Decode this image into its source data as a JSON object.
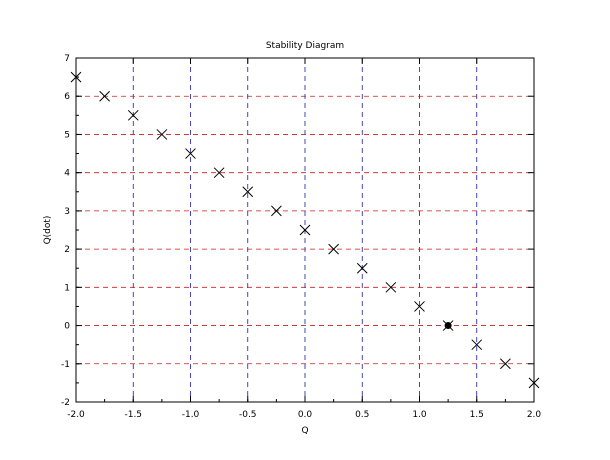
{
  "chart_data": {
    "type": "scatter",
    "title": "Stability Diagram",
    "xlabel": "Q",
    "ylabel": "Q(dot)",
    "xlim": [
      -2.0,
      2.0
    ],
    "ylim": [
      -2,
      7
    ],
    "grid": true,
    "grid_colors": {
      "x": "#1a1aa8",
      "y": "#c81e1e"
    },
    "x_ticks": [
      "-2.0",
      "-1.5",
      "-1.0",
      "-0.5",
      "0.0",
      "0.5",
      "1.0",
      "1.5",
      "2.0"
    ],
    "y_ticks": [
      "-2",
      "-1",
      "0",
      "1",
      "2",
      "3",
      "4",
      "5",
      "6",
      "7"
    ],
    "series": [
      {
        "marker": "x",
        "points": [
          {
            "x": -2.0,
            "y": 6.5
          },
          {
            "x": -1.75,
            "y": 6.0
          },
          {
            "x": -1.5,
            "y": 5.5
          },
          {
            "x": -1.25,
            "y": 5.0
          },
          {
            "x": -1.0,
            "y": 4.5
          },
          {
            "x": -0.75,
            "y": 4.0
          },
          {
            "x": -0.5,
            "y": 3.5
          },
          {
            "x": -0.25,
            "y": 3.0
          },
          {
            "x": 0.0,
            "y": 2.5
          },
          {
            "x": 0.25,
            "y": 2.0
          },
          {
            "x": 0.5,
            "y": 1.5
          },
          {
            "x": 0.75,
            "y": 1.0
          },
          {
            "x": 1.0,
            "y": 0.5
          },
          {
            "x": 1.25,
            "y": 0.0
          },
          {
            "x": 1.5,
            "y": -0.5
          },
          {
            "x": 1.75,
            "y": -1.0
          },
          {
            "x": 2.0,
            "y": -1.5
          }
        ]
      }
    ],
    "highlight_point": {
      "x": 1.25,
      "y": 0.0,
      "marker": "filled-dot"
    }
  }
}
